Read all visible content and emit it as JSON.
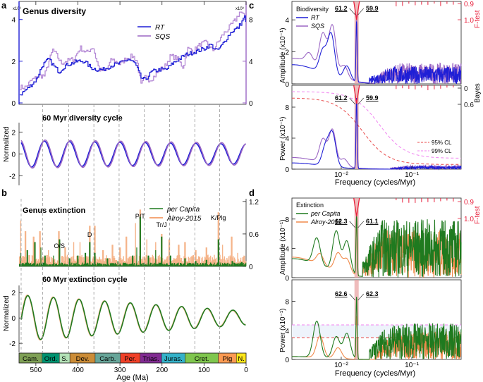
{
  "panel_letters": {
    "a": "a",
    "b": "b",
    "c": "c",
    "d": "d"
  },
  "colors": {
    "rt": "#1f1fd6",
    "sqs": "#9b66c4",
    "sqs_light": "#b58ad6",
    "percap": "#1f7a1f",
    "alroy": "#f08a4b",
    "alroy_light": "#f5b48a",
    "ftest": "#e8203c",
    "peak_band": "#e8a0a0",
    "cl95": "#e84848",
    "cl99": "#f080f0",
    "axis_blue": "#1f1fd6",
    "axis_purple": "#9b66c4",
    "axis_red": "#e8203c"
  },
  "chart_data": [
    {
      "id": "genus-diversity",
      "type": "line",
      "title": "Genus diversity",
      "xlabel": "Age (Ma)",
      "xlim": [
        540,
        0
      ],
      "left_axis": {
        "label_exp": "x10³",
        "ticks": [
          0,
          2,
          4
        ],
        "ylim": [
          0,
          4.6
        ]
      },
      "right_axis": {
        "label_exp": "x10³",
        "ticks": [
          0,
          4,
          8
        ],
        "ylim": [
          0,
          9.2
        ]
      },
      "top_ticks": [
        "",
        "",
        "",
        "",
        "",
        ""
      ],
      "series": [
        {
          "name": "RT",
          "axis": "left",
          "x": [
            538,
            520,
            500,
            485,
            470,
            455,
            445,
            430,
            415,
            400,
            385,
            370,
            355,
            340,
            320,
            300,
            280,
            265,
            250,
            240,
            225,
            205,
            190,
            175,
            160,
            145,
            130,
            115,
            100,
            85,
            70,
            60,
            50,
            40,
            30,
            20,
            10,
            5,
            0
          ],
          "y": [
            0.4,
            0.7,
            1.1,
            1.8,
            2.1,
            1.7,
            1.5,
            1.8,
            1.9,
            2.0,
            2.0,
            1.7,
            1.6,
            1.6,
            1.8,
            1.9,
            2.1,
            1.9,
            1.2,
            1.1,
            1.5,
            1.6,
            1.6,
            1.9,
            2.1,
            2.3,
            2.4,
            2.5,
            2.6,
            2.8,
            2.5,
            2.7,
            3.0,
            3.3,
            3.5,
            3.6,
            3.9,
            4.2,
            3.8
          ]
        },
        {
          "name": "SQS",
          "axis": "right",
          "x": [
            538,
            525,
            510,
            500,
            490,
            480,
            470,
            460,
            450,
            440,
            430,
            420,
            410,
            395,
            380,
            365,
            350,
            335,
            320,
            300,
            285,
            270,
            260,
            250,
            240,
            230,
            220,
            205,
            195,
            180,
            165,
            150,
            140,
            125,
            110,
            95,
            80,
            66,
            55,
            45,
            35,
            25,
            15,
            8,
            3,
            0
          ],
          "y": [
            1.5,
            1.5,
            2.2,
            2.4,
            2.6,
            2.6,
            3.9,
            5.1,
            4.5,
            3.8,
            4.0,
            4.1,
            4.2,
            5.3,
            4.8,
            5.4,
            3.2,
            3.0,
            4.2,
            3.7,
            4.3,
            4.5,
            4.0,
            1.7,
            2.5,
            2.2,
            2.5,
            3.2,
            3.4,
            4.5,
            4.3,
            3.4,
            5.2,
            5.0,
            5.6,
            5.8,
            5.0,
            5.9,
            6.6,
            7.0,
            7.5,
            8.0,
            8.8,
            8.4,
            8.2,
            7.7
          ]
        }
      ]
    },
    {
      "id": "diversity-cycle",
      "type": "line",
      "title": "60 Myr diversity cycle",
      "ylabel": "Normalized",
      "ticks": [
        -2,
        0,
        2
      ],
      "ylim": [
        -2.8,
        2.6
      ],
      "series": [
        {
          "name": "RT",
          "period_myr": 60,
          "amplitude": [
            1.2,
            0.9
          ],
          "phase_ma": 480
        },
        {
          "name": "SQS",
          "period_myr": 60,
          "amplitude": [
            1.3,
            1.0
          ],
          "phase_ma": 478
        }
      ]
    },
    {
      "id": "genus-extinction",
      "type": "bar",
      "title": "Genus extinction",
      "right_axis": {
        "ticks": [
          0,
          0.6,
          1.2
        ],
        "ylim": [
          0,
          1.25
        ]
      },
      "annotations": [
        {
          "text": "O/S",
          "age": 444
        },
        {
          "text": "D",
          "age": 372
        },
        {
          "text": "P/T",
          "age": 252
        },
        {
          "text": "Tr/J",
          "age": 201
        },
        {
          "text": "K/Plg",
          "age": 66
        }
      ],
      "series": [
        {
          "name": "per Capita",
          "peaks": [
            [
              536,
              0.25
            ],
            [
              520,
              0.3
            ],
            [
              502,
              0.45
            ],
            [
              488,
              0.35
            ],
            [
              478,
              0.2
            ],
            [
              458,
              0.2
            ],
            [
              444,
              0.5
            ],
            [
              420,
              0.15
            ],
            [
              400,
              0.2
            ],
            [
              382,
              0.25
            ],
            [
              372,
              0.45
            ],
            [
              360,
              0.25
            ],
            [
              330,
              0.15
            ],
            [
              305,
              0.1
            ],
            [
              270,
              0.2
            ],
            [
              260,
              0.35
            ],
            [
              252,
              0.92
            ],
            [
              232,
              0.2
            ],
            [
              215,
              0.3
            ],
            [
              201,
              0.55
            ],
            [
              180,
              0.2
            ],
            [
              145,
              0.15
            ],
            [
              120,
              0.1
            ],
            [
              94,
              0.12
            ],
            [
              66,
              0.5
            ],
            [
              33,
              0.1
            ],
            [
              10,
              0.08
            ]
          ]
        },
        {
          "name": "Alroy-2015",
          "peaks": [
            [
              536,
              0.85
            ],
            [
              525,
              0.65
            ],
            [
              505,
              0.55
            ],
            [
              490,
              0.65
            ],
            [
              470,
              0.3
            ],
            [
              445,
              0.65
            ],
            [
              430,
              0.35
            ],
            [
              410,
              0.45
            ],
            [
              395,
              0.45
            ],
            [
              372,
              0.75
            ],
            [
              360,
              0.75
            ],
            [
              340,
              0.3
            ],
            [
              318,
              0.4
            ],
            [
              300,
              0.35
            ],
            [
              285,
              0.55
            ],
            [
              263,
              0.8
            ],
            [
              252,
              1.05
            ],
            [
              236,
              0.5
            ],
            [
              215,
              0.45
            ],
            [
              201,
              0.6
            ],
            [
              183,
              0.5
            ],
            [
              160,
              0.4
            ],
            [
              145,
              0.45
            ],
            [
              120,
              0.3
            ],
            [
              94,
              0.35
            ],
            [
              66,
              1.0
            ],
            [
              56,
              0.4
            ],
            [
              34,
              0.55
            ],
            [
              20,
              0.25
            ],
            [
              5,
              0.2
            ]
          ]
        }
      ]
    },
    {
      "id": "extinction-cycle",
      "type": "line",
      "title": "60 Myr extinction cycle",
      "ylabel": "Normalized",
      "xlabel": "Age (Ma)",
      "ticks": [
        -2,
        0,
        2
      ],
      "ylim": [
        -2.6,
        2.4
      ],
      "x_ticks": [
        500,
        400,
        300,
        200,
        100,
        0
      ],
      "series": [
        {
          "name": "per Capita",
          "period_myr": 61,
          "amplitude": [
            1.85,
            0.5
          ],
          "phase_ma": 520
        },
        {
          "name": "Alroy-2015",
          "period_myr": 61,
          "amplitude": [
            1.8,
            0.55
          ],
          "phase_ma": 519
        }
      ]
    },
    {
      "id": "biodiversity-amplitude",
      "type": "line",
      "legend_title": "Biodiversity",
      "ylabel": "Amplitude (x10⁻¹)",
      "y_exp_note": "-1",
      "ticks": [
        0,
        2,
        4
      ],
      "ylim": [
        0,
        4.8
      ],
      "right_axis": {
        "label": "F-test",
        "ticks": [
          "0.9",
          "1.0"
        ]
      },
      "peak_labels": [
        "61.2",
        "59.9"
      ],
      "xlabel": "",
      "series": [
        {
          "name": "RT",
          "peaks_freq": [
            0.0164,
            0.005,
            0.007
          ],
          "peak_heights": [
            3.9,
            1.5,
            2.7
          ]
        },
        {
          "name": "SQS",
          "peaks_freq": [
            0.0167,
            0.005,
            0.007
          ],
          "peak_heights": [
            4.3,
            2.0,
            3.3
          ]
        }
      ]
    },
    {
      "id": "biodiversity-power",
      "type": "line",
      "ylabel": "Power (x10⁻¹)",
      "ticks": [
        0,
        4,
        8
      ],
      "ylim": [
        0,
        10
      ],
      "right_axis": {
        "label": "Bayes",
        "ticks": [
          "0",
          "0.6"
        ]
      },
      "peak_labels": [
        "61.2",
        "59.9"
      ],
      "legend": [
        "95% CL",
        "99% CL"
      ],
      "xlabel": "Frequency (cycles/Myr)",
      "x_ticks": [
        "10⁻²",
        "10⁻¹"
      ],
      "xlim": [
        0.002,
        0.5
      ]
    },
    {
      "id": "extinction-amplitude",
      "type": "line",
      "legend_title": "Extinction",
      "ylabel": "Amplitude (x10⁻¹)",
      "ticks": [
        0,
        4,
        8
      ],
      "ylim": [
        0,
        10
      ],
      "right_axis": {
        "label": "F-test",
        "ticks": [
          "0.9",
          "1.0"
        ]
      },
      "peak_labels": [
        "62.3",
        "61.1"
      ],
      "series": [
        {
          "name": "per Capita"
        },
        {
          "name": "Alroy-2015"
        }
      ]
    },
    {
      "id": "extinction-power",
      "type": "line",
      "ylabel": "Power (x10⁻¹)",
      "ticks": [
        0,
        4,
        8
      ],
      "ylim": [
        0,
        10
      ],
      "peak_labels": [
        "62.6",
        "62.3"
      ],
      "xlabel": "Frequency (cycles/Myr)",
      "x_ticks": [
        "10⁻²",
        "10⁻¹"
      ],
      "xlim": [
        0.002,
        0.5
      ]
    }
  ],
  "periods": [
    {
      "name": "Cam.",
      "start": 541,
      "end": 485,
      "color": "#7fa056"
    },
    {
      "name": "Ord.",
      "start": 485,
      "end": 444,
      "color": "#009270"
    },
    {
      "name": "S.",
      "start": 444,
      "end": 419,
      "color": "#b3e1b6"
    },
    {
      "name": "Dev.",
      "start": 419,
      "end": 359,
      "color": "#cb8c37"
    },
    {
      "name": "Carb.",
      "start": 359,
      "end": 299,
      "color": "#67a599"
    },
    {
      "name": "Per.",
      "start": 299,
      "end": 252,
      "color": "#f04028"
    },
    {
      "name": "Trias.",
      "start": 252,
      "end": 201,
      "color": "#812b92"
    },
    {
      "name": "Juras.",
      "start": 201,
      "end": 145,
      "color": "#34b2c9"
    },
    {
      "name": "Cret.",
      "start": 145,
      "end": 66,
      "color": "#7fc64e"
    },
    {
      "name": "Plg",
      "start": 66,
      "end": 23,
      "color": "#fd9a52"
    },
    {
      "name": "N.",
      "start": 23,
      "end": 0,
      "color": "#ffe619"
    }
  ],
  "age_axis": {
    "label": "Age (Ma)",
    "ticks": [
      "500",
      "400",
      "300",
      "200",
      "100",
      "0"
    ]
  }
}
